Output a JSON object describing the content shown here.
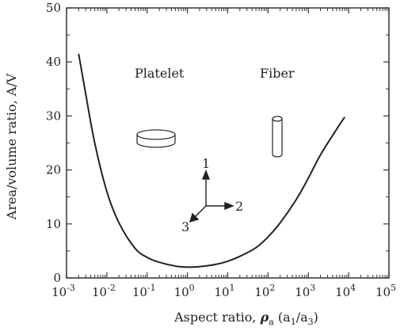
{
  "chart_data": {
    "type": "line",
    "xscale": "log",
    "xlim": [
      0.001,
      100000
    ],
    "ylim": [
      0,
      50
    ],
    "xlabel": "Aspect ratio, ρa (a1/a3)",
    "ylabel": "Area/volume ratio, A/V",
    "x_ticks": [
      {
        "value": 0.001,
        "exp": "-3"
      },
      {
        "value": 0.01,
        "exp": "-2"
      },
      {
        "value": 0.1,
        "exp": "-1"
      },
      {
        "value": 1,
        "exp": "0"
      },
      {
        "value": 10,
        "exp": "1"
      },
      {
        "value": 100,
        "exp": "2"
      },
      {
        "value": 1000,
        "exp": "3"
      },
      {
        "value": 10000,
        "exp": "4"
      },
      {
        "value": 100000,
        "exp": "5"
      }
    ],
    "x_tick_base": "10",
    "y_ticks": [
      "0",
      "10",
      "20",
      "30",
      "40",
      "50"
    ],
    "series": [
      {
        "x": [
          0.002,
          0.003,
          0.005,
          0.01,
          0.02,
          0.05,
          0.1,
          0.2,
          0.5,
          1,
          2,
          5,
          10,
          20,
          50,
          100,
          200,
          500,
          1000,
          2000,
          5000,
          8000
        ],
        "y": [
          41.5,
          34,
          25,
          16,
          10.2,
          5.5,
          3.8,
          2.9,
          2.2,
          2.0,
          2.1,
          2.5,
          3.1,
          4.0,
          5.6,
          7.6,
          10.2,
          14.5,
          18.5,
          22.8,
          27.5,
          29.8
        ]
      }
    ],
    "annotations": {
      "platelet": "Platelet",
      "fiber": "Fiber",
      "axis_1": "1",
      "axis_2": "2",
      "axis_3": "3"
    }
  }
}
